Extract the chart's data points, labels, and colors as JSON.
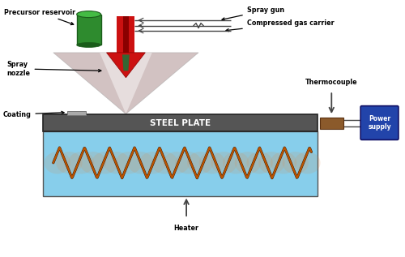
{
  "bg_color": "#ffffff",
  "labels": {
    "precursor_reservoir": "Precursor reservoir",
    "spray_gun": "Spray gun",
    "compressed_gas": "Compressed gas carrier",
    "spray_nozzle": "Spray\nnozzle",
    "coating": "Coating",
    "thermocouple": "Thermocouple",
    "steel_plate": "STEEL PLATE",
    "power_supply": "Power\nsupply",
    "heater": "Heater"
  },
  "colors": {
    "green_cyl_body": "#2e8b2e",
    "green_cyl_top": "#44bb44",
    "green_cyl_dark": "#1a5c1a",
    "red_arrow": "#cc1111",
    "red_arrow_dark": "#8b0000",
    "nozzle_green": "#336633",
    "spray_cone": "#c0a8a8",
    "spray_cone_light": "#e8d8d8",
    "steel_dark": "#555555",
    "steel_body": "#666666",
    "heater_box": "#87ceeb",
    "heater_wire": "#bb5500",
    "heater_glow": "#dd8844",
    "thermocouple_block": "#8b5a2b",
    "power_supply_bg": "#2244aa",
    "power_supply_text": "#ffffff",
    "wire_color": "#444444",
    "coating_strip": "#aaaaaa",
    "gas_line": "#444444",
    "annotation_arrow": "#111111"
  },
  "layout": {
    "xlim": [
      0,
      10
    ],
    "ylim": [
      0,
      6.34
    ],
    "figw": 5.0,
    "figh": 3.17,
    "dpi": 100
  }
}
